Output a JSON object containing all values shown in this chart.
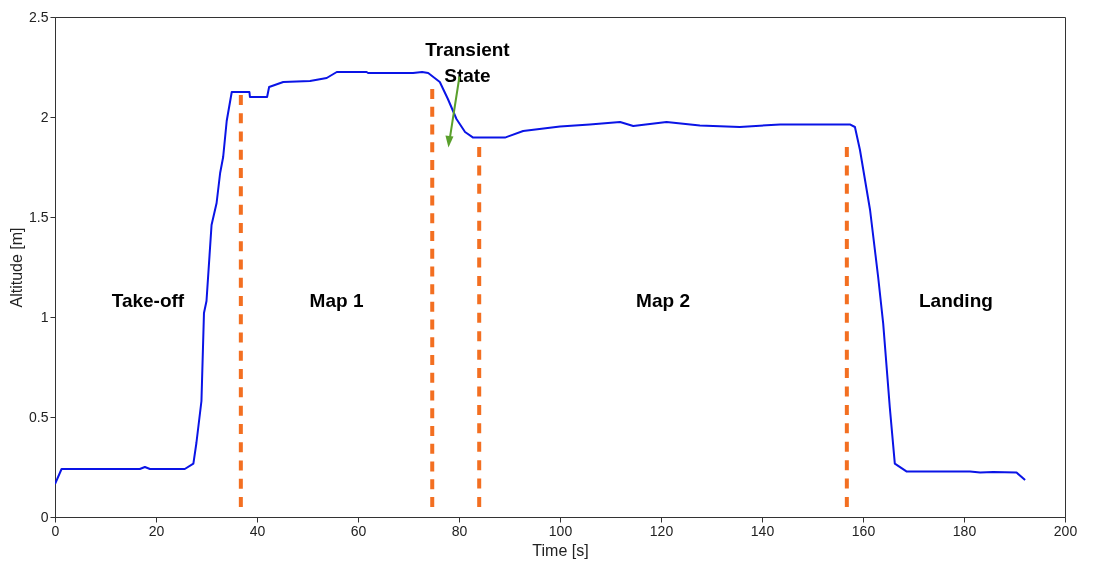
{
  "chart_data": {
    "type": "line",
    "xlabel": "Time [s]",
    "ylabel": "Altitude [m]",
    "xlim": [
      0,
      200
    ],
    "xticks": [
      0,
      20,
      40,
      60,
      80,
      100,
      120,
      140,
      160,
      180,
      200
    ],
    "ylim": [
      0,
      2.5
    ],
    "yticks": [
      0,
      0.5,
      1,
      1.5,
      2,
      2.5
    ],
    "grid": false,
    "series": [
      {
        "color": "#0a14e6",
        "line_style": "solid",
        "x": [
          0,
          1.3,
          16.8,
          17.8,
          18.8,
          25.7,
          27.4,
          28.0,
          29.0,
          29.5,
          30.0,
          31.0,
          32.0,
          32.7,
          33.3,
          34.0,
          35.0,
          38.5,
          38.6,
          42.0,
          42.4,
          45.2,
          50.5,
          53.8,
          55.8,
          61.7,
          62.0,
          70.9,
          72.7,
          73.9,
          76.2,
          77.8,
          79.5,
          81.2,
          82.8,
          89.1,
          92.7,
          100,
          105.9,
          111.9,
          114.5,
          121.1,
          127.7,
          135.6,
          143.6,
          157.4,
          158.4,
          159.4,
          161.4,
          163.0,
          164.0,
          165.3,
          166.3,
          168.6,
          181.2,
          183.2,
          185.8,
          190.4,
          192.1
        ],
        "values": [
          0.165,
          0.24,
          0.24,
          0.25,
          0.24,
          0.24,
          0.267,
          0.37,
          0.58,
          1.02,
          1.08,
          1.46,
          1.57,
          1.72,
          1.8,
          1.98,
          2.125,
          2.125,
          2.1,
          2.1,
          2.15,
          2.175,
          2.18,
          2.195,
          2.225,
          2.225,
          2.22,
          2.22,
          2.225,
          2.22,
          2.175,
          2.09,
          1.99,
          1.925,
          1.897,
          1.897,
          1.93,
          1.953,
          1.963,
          1.975,
          1.955,
          1.975,
          1.957,
          1.95,
          1.963,
          1.963,
          1.95,
          1.835,
          1.535,
          1.2,
          0.967,
          0.55,
          0.267,
          0.228,
          0.228,
          0.222,
          0.225,
          0.222,
          0.185
        ]
      },
      {
        "color": "#f36f21",
        "line_style": "dashed",
        "x": [
          36.8,
          36.8
        ],
        "values": [
          0.05,
          2.11
        ]
      },
      {
        "color": "#f36f21",
        "line_style": "dashed",
        "x": [
          74.7,
          74.7
        ],
        "values": [
          0.05,
          2.14
        ]
      },
      {
        "color": "#f36f21",
        "line_style": "dashed",
        "x": [
          84,
          84
        ],
        "values": [
          0.05,
          1.85
        ]
      },
      {
        "color": "#f36f21",
        "line_style": "dashed",
        "x": [
          156.8,
          156.8
        ],
        "values": [
          0.05,
          1.85
        ]
      }
    ],
    "annotations": [
      "Take-off",
      "Map 1",
      "Transient\nState",
      "Map 2",
      "Landing"
    ]
  }
}
